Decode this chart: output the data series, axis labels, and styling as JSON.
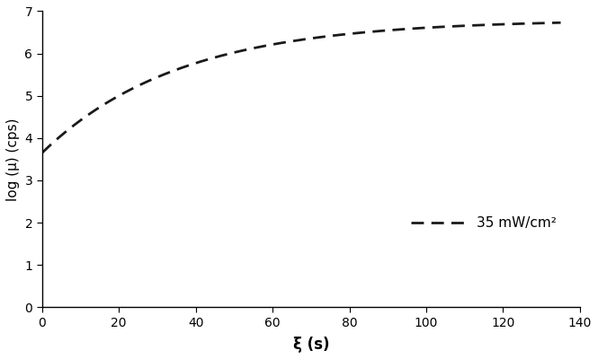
{
  "title": "",
  "xlabel": "ξ (s)",
  "ylabel": "log (μ) (cps)",
  "xlim": [
    0,
    140
  ],
  "ylim": [
    0,
    7
  ],
  "xticks": [
    0,
    20,
    40,
    60,
    80,
    100,
    120,
    140
  ],
  "yticks": [
    0,
    1,
    2,
    3,
    4,
    5,
    6,
    7
  ],
  "legend_label": "35 mW/cm²",
  "curve_color": "#1a1a1a",
  "line_width": 2.0,
  "curve_params": {
    "y0": 3.65,
    "ymax": 6.8,
    "k": 0.028
  },
  "dashes_on": 5,
  "dashes_off": 3,
  "background_color": "#ffffff",
  "xlabel_fontsize": 12,
  "ylabel_fontsize": 11,
  "tick_fontsize": 10,
  "legend_fontsize": 11,
  "xlabel_bold": true
}
